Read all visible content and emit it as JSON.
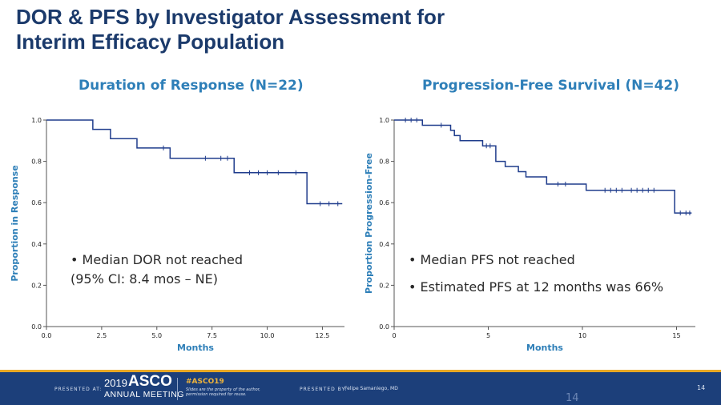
{
  "title": {
    "line1": "DOR & PFS by Investigator Assessment for",
    "line2": "Interim Efficacy Population"
  },
  "chart_data": [
    {
      "type": "line",
      "subtype": "kaplan-meier-step",
      "title": "Duration of Response (N=22)",
      "xlabel": "Months",
      "ylabel": "Proportion in Response",
      "xlim": [
        0,
        13.5
      ],
      "ylim": [
        0,
        1
      ],
      "xticks": [
        0,
        2.5,
        5.0,
        7.5,
        10.0,
        12.5
      ],
      "xtick_labels": [
        "0.0",
        "2.5",
        "5.0",
        "7.5",
        "10.0",
        "12.5"
      ],
      "yticks": [
        0,
        0.2,
        0.4,
        0.6,
        0.8,
        1.0
      ],
      "ytick_labels": [
        "0.0",
        "0.2",
        "0.4",
        "0.6",
        "0.8",
        "1.0"
      ],
      "steps": [
        [
          0,
          1.0
        ],
        [
          2.1,
          0.955
        ],
        [
          2.9,
          0.91
        ],
        [
          4.1,
          0.865
        ],
        [
          5.6,
          0.815
        ],
        [
          8.5,
          0.745
        ],
        [
          11.8,
          0.595
        ],
        [
          13.4,
          0.595
        ]
      ],
      "censored": [
        [
          5.3,
          0.865
        ],
        [
          7.2,
          0.815
        ],
        [
          7.9,
          0.815
        ],
        [
          8.2,
          0.815
        ],
        [
          9.2,
          0.745
        ],
        [
          9.6,
          0.745
        ],
        [
          10.0,
          0.745
        ],
        [
          10.5,
          0.745
        ],
        [
          11.3,
          0.745
        ],
        [
          12.4,
          0.595
        ],
        [
          12.8,
          0.595
        ],
        [
          13.2,
          0.595
        ]
      ],
      "grid": false,
      "notes": [
        "Median DOR not reached",
        "(95% CI: 8.4 mos – NE)"
      ]
    },
    {
      "type": "line",
      "subtype": "kaplan-meier-step",
      "title": "Progression-Free Survival (N=42)",
      "xlabel": "Months",
      "ylabel": "Proportion Progression-Free",
      "xlim": [
        0,
        16
      ],
      "ylim": [
        0,
        1
      ],
      "xticks": [
        0,
        5,
        10,
        15
      ],
      "xtick_labels": [
        "0",
        "5",
        "10",
        "15"
      ],
      "yticks": [
        0,
        0.2,
        0.4,
        0.6,
        0.8,
        1.0
      ],
      "ytick_labels": [
        "0.0",
        "0.2",
        "0.4",
        "0.6",
        "0.8",
        "1.0"
      ],
      "steps": [
        [
          0,
          1.0
        ],
        [
          1.5,
          0.975
        ],
        [
          3.0,
          0.95
        ],
        [
          3.2,
          0.925
        ],
        [
          3.5,
          0.9
        ],
        [
          4.7,
          0.875
        ],
        [
          5.4,
          0.8
        ],
        [
          5.9,
          0.775
        ],
        [
          6.6,
          0.75
        ],
        [
          7.0,
          0.725
        ],
        [
          8.1,
          0.69
        ],
        [
          10.2,
          0.66
        ],
        [
          14.9,
          0.55
        ],
        [
          15.8,
          0.55
        ]
      ],
      "censored": [
        [
          0.6,
          1.0
        ],
        [
          0.9,
          1.0
        ],
        [
          1.2,
          1.0
        ],
        [
          2.5,
          0.975
        ],
        [
          4.9,
          0.875
        ],
        [
          5.1,
          0.875
        ],
        [
          8.7,
          0.69
        ],
        [
          9.1,
          0.69
        ],
        [
          11.2,
          0.66
        ],
        [
          11.5,
          0.66
        ],
        [
          11.8,
          0.66
        ],
        [
          12.1,
          0.66
        ],
        [
          12.6,
          0.66
        ],
        [
          12.9,
          0.66
        ],
        [
          13.2,
          0.66
        ],
        [
          13.5,
          0.66
        ],
        [
          13.8,
          0.66
        ],
        [
          15.2,
          0.55
        ],
        [
          15.5,
          0.55
        ],
        [
          15.7,
          0.55
        ]
      ],
      "grid": false,
      "notes": [
        "Median PFS not reached",
        "Estimated PFS at 12 months was 66%"
      ]
    }
  ],
  "colors": {
    "curve": "#1f3c8c",
    "panel_title": "#2e7fb8",
    "footer": "#1c3f7a",
    "accent": "#e9a825"
  },
  "footer": {
    "presented_at": "PRESENTED AT:",
    "year": "2019",
    "brand": "ASCO",
    "meeting": "ANNUAL MEETING",
    "hashtag": "#ASCO19",
    "slides_note": "Slides are the property of the author, permission required for reuse.",
    "presented_by": "PRESENTED BY:",
    "presenter": "Felipe Samaniego, MD",
    "page_number": "14"
  },
  "page_number_lower": "14"
}
